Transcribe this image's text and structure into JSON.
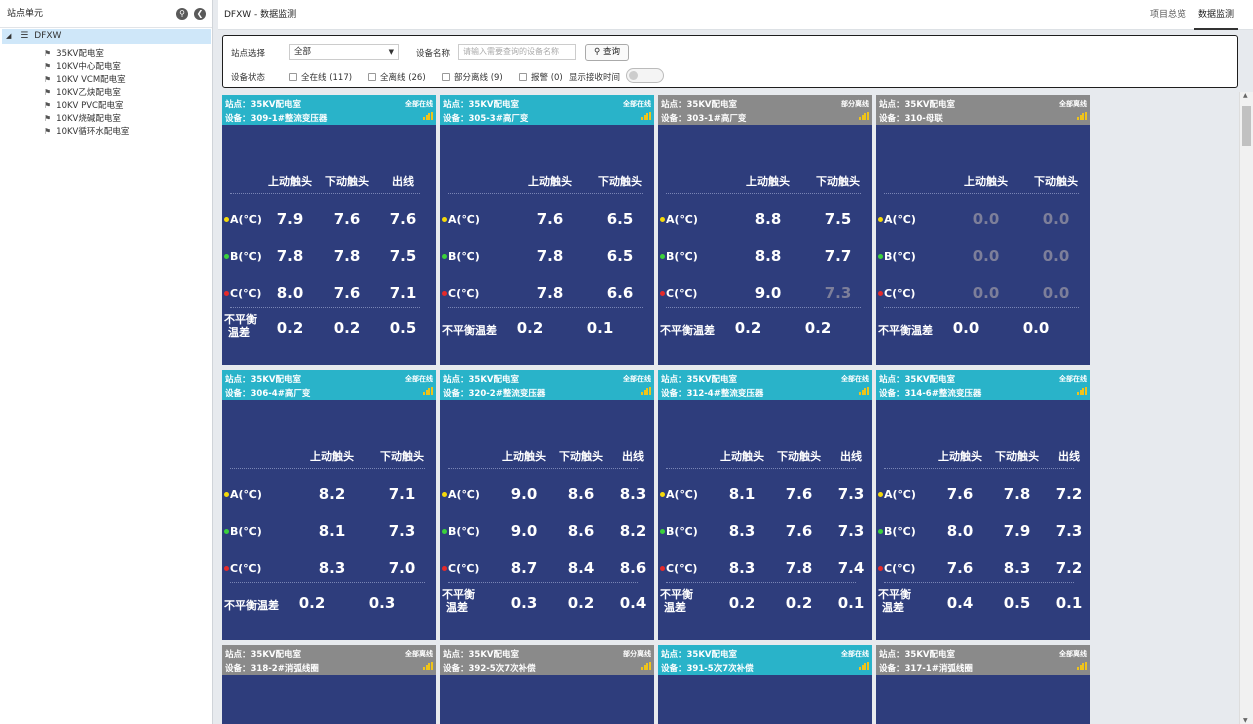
{
  "sidebar": {
    "title": "站点单元",
    "root": "DFXW",
    "items": [
      "35KV配电室",
      "10KV中心配电室",
      "10KV VCM配电室",
      "10KV乙炔配电室",
      "10KV PVC配电室",
      "10KV烧碱配电室",
      "10KV循环水配电室"
    ]
  },
  "topbar": {
    "title": "DFXW - 数据监测",
    "tab_overview": "项目总览",
    "tab_monitor": "数据监测"
  },
  "filter": {
    "station_label": "站点选择",
    "station_value": "全部",
    "device_label": "设备名称",
    "device_placeholder": "请输入需要查询的设备名称",
    "query_label": "查询",
    "status_label": "设备状态",
    "options": [
      "全在线 (117)",
      "全离线 (26)",
      "部分离线 (9)",
      "报警 (0)"
    ],
    "show_time_label": "显示接收时间"
  },
  "labels": {
    "site_prefix": "站点：",
    "device_prefix": "设备：",
    "upper": "上动触头",
    "lower": "下动触头",
    "out": "出线",
    "a": "A(℃)",
    "b": "B(℃)",
    "c": "C(℃)",
    "unbal": "不平衡温差",
    "unbal_wrap_1": "不平衡",
    "unbal_wrap_2": "温差"
  },
  "colors": {
    "online": "#29b3c9",
    "offline": "#8a8a8a",
    "card": "#2e3d7c",
    "phase_a": "#f5d90a",
    "phase_b": "#3bd13b",
    "phase_c": "#e52a2a"
  },
  "cards": [
    {
      "site": "35KV配电室",
      "device": "309-1#整流变压器",
      "status": "全部在线",
      "state": "online",
      "cols": [
        "上动触头",
        "下动触头",
        "出线"
      ],
      "a": [
        "7.9",
        "7.6",
        "7.6"
      ],
      "b": [
        "7.8",
        "7.8",
        "7.5"
      ],
      "c": [
        "8.0",
        "7.6",
        "7.1"
      ],
      "u": [
        "0.2",
        "0.2",
        "0.5"
      ],
      "wrap": true
    },
    {
      "site": "35KV配电室",
      "device": "305-3#高厂变",
      "status": "全部在线",
      "state": "online",
      "cols": [
        "上动触头",
        "下动触头"
      ],
      "a": [
        "7.6",
        "6.5"
      ],
      "b": [
        "7.8",
        "6.5"
      ],
      "c": [
        "7.8",
        "6.6"
      ],
      "u": [
        "0.2",
        "0.1"
      ],
      "wrap": false
    },
    {
      "site": "35KV配电室",
      "device": "303-1#高厂变",
      "status": "部分离线",
      "state": "offline",
      "cols": [
        "上动触头",
        "下动触头"
      ],
      "a": [
        "8.8",
        "7.5"
      ],
      "b": [
        "8.8",
        "7.7"
      ],
      "c": [
        "9.0",
        "7.3"
      ],
      "u": [
        "0.2",
        "0.2"
      ],
      "wrap": false,
      "dim": [
        "c1"
      ]
    },
    {
      "site": "35KV配电室",
      "device": "310-母联",
      "status": "全部离线",
      "state": "offline",
      "cols": [
        "上动触头",
        "下动触头"
      ],
      "a": [
        "0.0",
        "0.0"
      ],
      "b": [
        "0.0",
        "0.0"
      ],
      "c": [
        "0.0",
        "0.0"
      ],
      "u": [
        "0.0",
        "0.0"
      ],
      "wrap": false,
      "alldim": true
    },
    {
      "site": "35KV配电室",
      "device": "306-4#高厂变",
      "status": "全部在线",
      "state": "online",
      "cols": [
        "上动触头",
        "下动触头"
      ],
      "a": [
        "8.2",
        "7.1"
      ],
      "b": [
        "8.1",
        "7.3"
      ],
      "c": [
        "8.3",
        "7.0"
      ],
      "u": [
        "0.2",
        "0.3"
      ],
      "wrap": false
    },
    {
      "site": "35KV配电室",
      "device": "320-2#整流变压器",
      "status": "全部在线",
      "state": "online",
      "cols": [
        "上动触头",
        "下动触头",
        "出线"
      ],
      "a": [
        "9.0",
        "8.6",
        "8.3"
      ],
      "b": [
        "9.0",
        "8.6",
        "8.2"
      ],
      "c": [
        "8.7",
        "8.4",
        "8.6"
      ],
      "u": [
        "0.3",
        "0.2",
        "0.4"
      ],
      "wrap": true
    },
    {
      "site": "35KV配电室",
      "device": "312-4#整流变压器",
      "status": "全部在线",
      "state": "online",
      "cols": [
        "上动触头",
        "下动触头",
        "出线"
      ],
      "a": [
        "8.1",
        "7.6",
        "7.3"
      ],
      "b": [
        "8.3",
        "7.6",
        "7.3"
      ],
      "c": [
        "8.3",
        "7.8",
        "7.4"
      ],
      "u": [
        "0.2",
        "0.2",
        "0.1"
      ],
      "wrap": true
    },
    {
      "site": "35KV配电室",
      "device": "314-6#整流变压器",
      "status": "全部在线",
      "state": "online",
      "cols": [
        "上动触头",
        "下动触头",
        "出线"
      ],
      "a": [
        "7.6",
        "7.8",
        "7.2"
      ],
      "b": [
        "8.0",
        "7.9",
        "7.3"
      ],
      "c": [
        "7.6",
        "8.3",
        "7.2"
      ],
      "u": [
        "0.4",
        "0.5",
        "0.1"
      ],
      "wrap": true
    },
    {
      "site": "35KV配电室",
      "device": "318-2#消弧线圈",
      "status": "全部离线",
      "state": "offline"
    },
    {
      "site": "35KV配电室",
      "device": "392-5次7次补偿",
      "status": "部分离线",
      "state": "offline"
    },
    {
      "site": "35KV配电室",
      "device": "391-5次7次补偿",
      "status": "全部在线",
      "state": "online"
    },
    {
      "site": "35KV配电室",
      "device": "317-1#消弧线圈",
      "status": "全部离线",
      "state": "offline"
    }
  ]
}
